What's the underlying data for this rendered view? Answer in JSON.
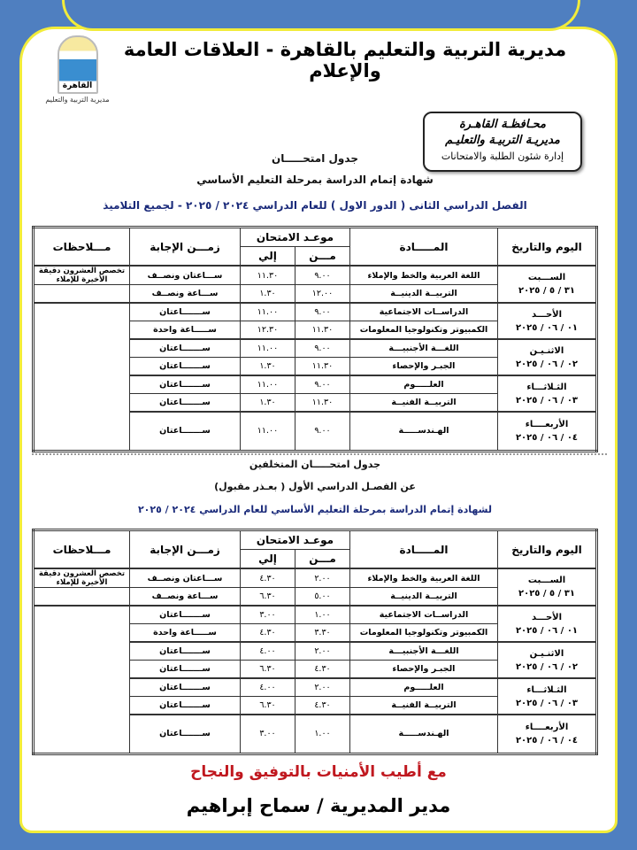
{
  "header": {
    "title": "مديرية التربية والتعليم بالقاهرة - العلاقات العامة والإعلام",
    "logo_text": "القاهرة",
    "logo_caption": "مديرية التربية والتعليم"
  },
  "stamp": {
    "line1": "محـافظـة القاهـرة",
    "line2": "مديريـة التربيـة والتعليـم",
    "line3": "إدارة شئون الطلبة والامتحانات"
  },
  "section1": {
    "title1": "جدول امتحـــــان",
    "title2": "شهادة إتمام الدراسة بمرحلة التعليم الأساسي",
    "title3": "الفصل الدراسي الثانى ( الدور الاول ) للعام الدراسي ٢٠٢٤ / ٢٠٢٥ - لجميع التلاميذ"
  },
  "section2": {
    "title1": "جدول امتحـــــان المتخلفين",
    "title2": "عن الفصـل الدراسي الأول ( بعـذر مقبول)",
    "title3": "لشهادة إتمام الدراسة بمرحلة التعليم الأساسي للعام الدراسي ٢٠٢٤ / ٢٠٢٥"
  },
  "columns": {
    "day": "اليوم والتاريخ",
    "subject": "المـــــادة",
    "time": "موعـد الامتحان",
    "from": "مـــن",
    "to": "إلي",
    "duration": "زمـــن الإجابة",
    "notes": "مـــلاحظات"
  },
  "note_dictation": "تخصص العشرون دقيقة الأخيرة للإملاء",
  "tables": [
    {
      "days": [
        {
          "day": "الســـبت",
          "date": "٣١ / ٥ / ٢٠٢٥",
          "rows": [
            {
              "subject": "اللغة العربية والخط والإملاء",
              "from": "٩.٠٠",
              "to": "١١.٣٠",
              "duration": "ســـاعتان ونصــف"
            },
            {
              "subject": "التربيــة الدينيــة",
              "from": "١٢.٠٠",
              "to": "١.٣٠",
              "duration": "ســـاعة ونصــف"
            }
          ]
        },
        {
          "day": "الأحـــد",
          "date": "٠١ / ٠٦ / ٢٠٢٥",
          "rows": [
            {
              "subject": "الدراســات الاجتماعية",
              "from": "٩.٠٠",
              "to": "١١.٠٠",
              "duration": "ســـــــاعتان"
            },
            {
              "subject": "الكمبيوتر وتكنولوجيا المعلومات",
              "from": "١١.٣٠",
              "to": "١٢.٣٠",
              "duration": "ســـــاعة واحدة"
            }
          ]
        },
        {
          "day": "الاثنـيـن",
          "date": "٠٢ / ٠٦ / ٢٠٢٥",
          "rows": [
            {
              "subject": "اللغـــة الأجنبيـــة",
              "from": "٩.٠٠",
              "to": "١١.٠٠",
              "duration": "ســـــــاعتان"
            },
            {
              "subject": "الجبـر والإحصاء",
              "from": "١١.٣٠",
              "to": "١.٣٠",
              "duration": "ســـــــاعتان"
            }
          ]
        },
        {
          "day": "الثـلاثـــاء",
          "date": "٠٣ / ٠٦ / ٢٠٢٥",
          "rows": [
            {
              "subject": "العلـــــوم",
              "from": "٩.٠٠",
              "to": "١١.٠٠",
              "duration": "ســـــــاعتان"
            },
            {
              "subject": "التربيــة الفنيــة",
              "from": "١١.٣٠",
              "to": "١.٣٠",
              "duration": "ســـــــاعتان"
            }
          ]
        },
        {
          "day": "الأربعــــاء",
          "date": "٠٤ / ٠٦ / ٢٠٢٥",
          "rows": [
            {
              "subject": "الهـندســـــة",
              "from": "٩.٠٠",
              "to": "١١.٠٠",
              "duration": "ســـــــاعتان"
            }
          ]
        }
      ]
    },
    {
      "days": [
        {
          "day": "الســـبت",
          "date": "٣١ / ٥ / ٢٠٢٥",
          "rows": [
            {
              "subject": "اللغة العربية والخط والإملاء",
              "from": "٢.٠٠",
              "to": "٤.٣٠",
              "duration": "ســـاعتان ونصــف"
            },
            {
              "subject": "التربيــة الدينيــة",
              "from": "٥.٠٠",
              "to": "٦.٣٠",
              "duration": "ســـاعة ونصــف"
            }
          ]
        },
        {
          "day": "الأحـــد",
          "date": "٠١ / ٠٦ / ٢٠٢٥",
          "rows": [
            {
              "subject": "الدراســات الاجتماعية",
              "from": "١.٠٠",
              "to": "٣.٠٠",
              "duration": "ســـــــاعتان"
            },
            {
              "subject": "الكمبيوتر وتكنولوجيا المعلومات",
              "from": "٣.٣٠",
              "to": "٤.٣٠",
              "duration": "ســـــاعة واحدة"
            }
          ]
        },
        {
          "day": "الاثنـيـن",
          "date": "٠٢ / ٠٦ / ٢٠٢٥",
          "rows": [
            {
              "subject": "اللغـــة الأجنبيـــة",
              "from": "٢.٠٠",
              "to": "٤.٠٠",
              "duration": "ســـــــاعتان"
            },
            {
              "subject": "الجبـر والإحصاء",
              "from": "٤.٣٠",
              "to": "٦.٣٠",
              "duration": "ســـــــاعتان"
            }
          ]
        },
        {
          "day": "الثـلاثـــاء",
          "date": "٠٣ / ٠٦ / ٢٠٢٥",
          "rows": [
            {
              "subject": "العلـــــوم",
              "from": "٢.٠٠",
              "to": "٤.٠٠",
              "duration": "ســـــــاعتان"
            },
            {
              "subject": "التربيــة الفنيــة",
              "from": "٤.٣٠",
              "to": "٦.٣٠",
              "duration": "ســـــــاعتان"
            }
          ]
        },
        {
          "day": "الأربعــــاء",
          "date": "٠٤ / ٠٦ / ٢٠٢٥",
          "rows": [
            {
              "subject": "الهـندســـــة",
              "from": "١.٠٠",
              "to": "٣.٠٠",
              "duration": "ســـــــاعتان"
            }
          ]
        }
      ]
    }
  ],
  "footer": {
    "wishes": "مع أطيب الأمنيات بالتوفيق والنجاح",
    "signature": "مدير المديرية / سماح إبراهيم"
  }
}
